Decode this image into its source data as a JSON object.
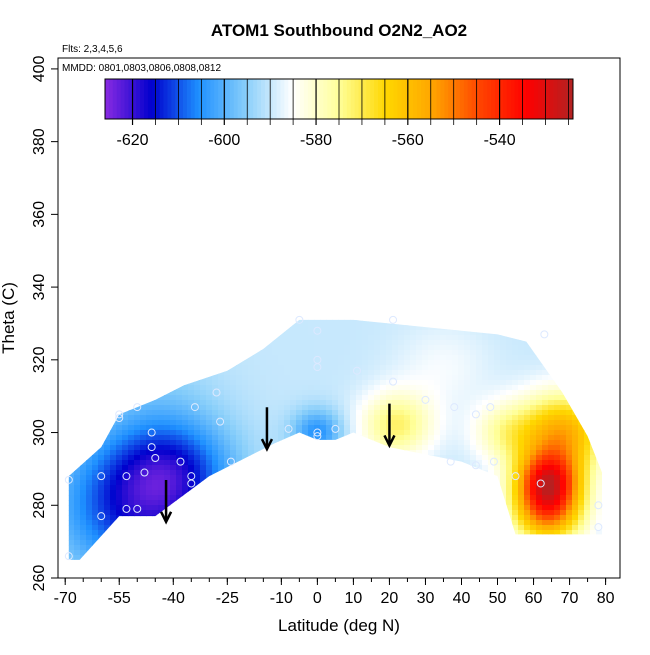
{
  "chart_data": {
    "type": "heatmap",
    "title": "ATOM1 Southbound O2N2_AO2",
    "subtitle_flights": "Flts: 2,3,4,5,6",
    "subtitle_dates": "MMDD: 0801,0803,0806,0808,0812",
    "xlabel": "Latitude (deg N)",
    "ylabel": "Theta (C)",
    "xlim": [
      -72,
      84
    ],
    "ylim": [
      260,
      403
    ],
    "xticks": [
      -70,
      -55,
      -40,
      -25,
      -10,
      0,
      10,
      20,
      30,
      40,
      50,
      60,
      70,
      80
    ],
    "xtick_labels": [
      "-70",
      "-55",
      "-40",
      "-25",
      "-10",
      "0",
      "10",
      "20",
      "30",
      "40",
      "50",
      "60",
      "70",
      "80"
    ],
    "yticks": [
      260,
      280,
      300,
      320,
      340,
      360,
      380,
      400
    ],
    "ytick_labels": [
      "260",
      "280",
      "300",
      "320",
      "340",
      "360",
      "380",
      "400"
    ],
    "colorbar": {
      "range": [
        -626,
        -524
      ],
      "ticks": [
        -620,
        -600,
        -580,
        -560,
        -540
      ],
      "tick_labels": [
        "-620",
        "-600",
        "-580",
        "-560",
        "-540"
      ],
      "colors": [
        "#8a2be2",
        "#0000cd",
        "#1e90ff",
        "#87cefa",
        "#ffffff",
        "#ffff99",
        "#ffd700",
        "#ffa500",
        "#ff4500",
        "#ff0000",
        "#b22222"
      ]
    },
    "field": {
      "ceiling": [
        [
          -69,
          288
        ],
        [
          -60,
          296
        ],
        [
          -55,
          305
        ],
        [
          -45,
          309
        ],
        [
          -37,
          313
        ],
        [
          -25,
          317
        ],
        [
          -15,
          323
        ],
        [
          -5,
          331
        ],
        [
          10,
          331
        ],
        [
          30,
          329
        ],
        [
          50,
          327
        ],
        [
          58,
          325
        ],
        [
          68,
          311
        ],
        [
          75,
          299
        ],
        [
          79,
          289
        ]
      ],
      "floor": [
        [
          79,
          272
        ],
        [
          55,
          272
        ],
        [
          50,
          288
        ],
        [
          40,
          292
        ],
        [
          30,
          294
        ],
        [
          20,
          296
        ],
        [
          10,
          300
        ],
        [
          5,
          298
        ],
        [
          0,
          298
        ],
        [
          -5,
          300
        ],
        [
          -12,
          297
        ],
        [
          -20,
          293
        ],
        [
          -30,
          288
        ],
        [
          -45,
          277
        ],
        [
          -55,
          277
        ],
        [
          -66,
          265
        ],
        [
          -69,
          265
        ]
      ],
      "blobs": [
        {
          "center": [
            -50,
            280
          ],
          "value": -614,
          "radius": 22
        },
        {
          "center": [
            -40,
            290
          ],
          "value": -605,
          "radius": 16
        },
        {
          "center": [
            -45,
            312
          ],
          "value": -593,
          "radius": 18
        },
        {
          "center": [
            0,
            300
          ],
          "value": -605,
          "radius": 7
        },
        {
          "center": [
            22,
            302
          ],
          "value": -572,
          "radius": 10
        },
        {
          "center": [
            35,
            318
          ],
          "value": -586,
          "radius": 14
        },
        {
          "center": [
            52,
            300
          ],
          "value": -578,
          "radius": 9
        },
        {
          "center": [
            64,
            287
          ],
          "value": -546,
          "radius": 9
        },
        {
          "center": [
            68,
            300
          ],
          "value": -557,
          "radius": 12
        },
        {
          "center": [
            64,
            278
          ],
          "value": -553,
          "radius": 10
        }
      ],
      "background_value": -590
    },
    "observations": [
      [
        -69,
        287
      ],
      [
        -69,
        266
      ],
      [
        -60,
        288
      ],
      [
        -60,
        277
      ],
      [
        -55,
        305
      ],
      [
        -55,
        304
      ],
      [
        -53,
        288
      ],
      [
        -53,
        279
      ],
      [
        -50,
        307
      ],
      [
        -50,
        279
      ],
      [
        -48,
        289
      ],
      [
        -46,
        300
      ],
      [
        -46,
        296
      ],
      [
        -45,
        293
      ],
      [
        -38,
        292
      ],
      [
        -35,
        288
      ],
      [
        -35,
        286
      ],
      [
        -34,
        307
      ],
      [
        -28,
        311
      ],
      [
        -27,
        303
      ],
      [
        -24,
        292
      ],
      [
        -8,
        301
      ],
      [
        -5,
        331
      ],
      [
        0,
        328
      ],
      [
        0,
        320
      ],
      [
        0,
        318
      ],
      [
        0,
        300
      ],
      [
        0,
        299
      ],
      [
        5,
        301
      ],
      [
        11,
        317
      ],
      [
        21,
        331
      ],
      [
        21,
        314
      ],
      [
        30,
        309
      ],
      [
        37,
        292
      ],
      [
        38,
        307
      ],
      [
        44,
        291
      ],
      [
        44,
        305
      ],
      [
        48,
        307
      ],
      [
        49,
        292
      ],
      [
        63,
        327
      ],
      [
        62,
        286
      ],
      [
        78,
        280
      ],
      [
        78,
        274
      ],
      [
        55,
        288
      ]
    ],
    "arrows": [
      {
        "lat": -42,
        "theta_top": 282,
        "theta_bottom": 276
      },
      {
        "lat": -14,
        "theta_top": 302,
        "theta_bottom": 296
      },
      {
        "lat": 20,
        "theta_top": 303,
        "theta_bottom": 297
      }
    ]
  }
}
